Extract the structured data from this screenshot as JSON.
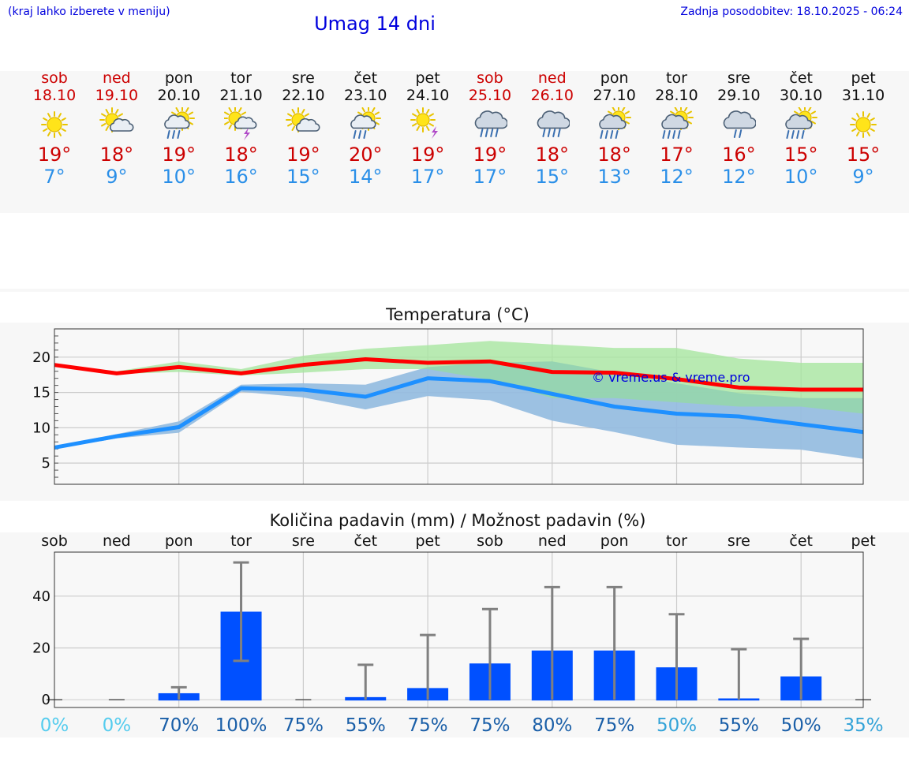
{
  "header": {
    "hint": "(kraj lahko izberete v meniju)",
    "title": "Umag 14 dni",
    "updated": "Zadnja posodobitev: 18.10.2025 - 06:24"
  },
  "days": [
    {
      "name": "sob",
      "date": "18.10",
      "weekend": true,
      "icon": "sun-icon",
      "max": "19°",
      "min": "7°"
    },
    {
      "name": "ned",
      "date": "19.10",
      "weekend": true,
      "icon": "sun-cloud-icon",
      "max": "18°",
      "min": "9°"
    },
    {
      "name": "pon",
      "date": "20.10",
      "weekend": false,
      "icon": "sun-cloud-rain-icon",
      "max": "19°",
      "min": "10°"
    },
    {
      "name": "tor",
      "date": "21.10",
      "weekend": false,
      "icon": "sun-cloud-thunder-icon",
      "max": "18°",
      "min": "16°"
    },
    {
      "name": "sre",
      "date": "22.10",
      "weekend": false,
      "icon": "sun-cloud-icon",
      "max": "19°",
      "min": "15°"
    },
    {
      "name": "čet",
      "date": "23.10",
      "weekend": false,
      "icon": "sun-cloud-rain-icon",
      "max": "20°",
      "min": "14°"
    },
    {
      "name": "pet",
      "date": "24.10",
      "weekend": false,
      "icon": "sun-thunder-icon",
      "max": "19°",
      "min": "17°"
    },
    {
      "name": "sob",
      "date": "25.10",
      "weekend": true,
      "icon": "cloud-heavy-rain-icon",
      "max": "19°",
      "min": "17°"
    },
    {
      "name": "ned",
      "date": "26.10",
      "weekend": true,
      "icon": "cloud-heavy-rain-icon",
      "max": "18°",
      "min": "15°"
    },
    {
      "name": "pon",
      "date": "27.10",
      "weekend": false,
      "icon": "sun-cloud-heavy-rain-icon",
      "max": "18°",
      "min": "13°"
    },
    {
      "name": "tor",
      "date": "28.10",
      "weekend": false,
      "icon": "sun-cloud-heavy-rain-icon",
      "max": "17°",
      "min": "12°"
    },
    {
      "name": "sre",
      "date": "29.10",
      "weekend": false,
      "icon": "cloud-rain-icon",
      "max": "16°",
      "min": "12°"
    },
    {
      "name": "čet",
      "date": "30.10",
      "weekend": false,
      "icon": "sun-cloud-heavy-rain-icon",
      "max": "15°",
      "min": "10°"
    },
    {
      "name": "pet",
      "date": "31.10",
      "weekend": false,
      "icon": "sun-icon",
      "max": "15°",
      "min": "9°"
    }
  ],
  "colors": {
    "max_line": "#ff0000",
    "min_line": "#1e90ff",
    "max_band": "#a8e6a0",
    "min_band": "#a9c1f0",
    "overlap_band": "#7fc4a8",
    "bar": "#0050ff",
    "error_bar": "#808080",
    "title_blue": "#0000dd",
    "weekend_red": "#cc0000"
  },
  "chart_data": [
    {
      "type": "line",
      "title": "Temperatura (°C)",
      "watermark": "© vreme.us & vreme.pro",
      "ylim": [
        2,
        24
      ],
      "yticks": [
        5,
        10,
        15,
        20
      ],
      "x": [
        0,
        1,
        2,
        3,
        4,
        5,
        6,
        7,
        8,
        9,
        10,
        11,
        12,
        13
      ],
      "series": [
        {
          "name": "max",
          "values": [
            18.9,
            17.7,
            18.6,
            17.7,
            18.9,
            19.7,
            19.2,
            19.4,
            17.9,
            17.8,
            16.9,
            15.7,
            15.4,
            15.4
          ]
        },
        {
          "name": "min",
          "values": [
            7.2,
            8.8,
            10.1,
            15.6,
            15.4,
            14.4,
            17.0,
            16.6,
            14.8,
            13.0,
            12.0,
            11.6,
            10.5,
            9.4
          ]
        }
      ],
      "bands": [
        {
          "name": "max-range",
          "low": [
            18.9,
            17.6,
            17.9,
            17.4,
            17.8,
            18.3,
            18.3,
            16.8,
            14.2,
            14.2,
            13.6,
            13.0,
            13.0,
            12.0
          ],
          "high": [
            19.0,
            18.0,
            19.4,
            18.3,
            20.2,
            21.2,
            21.7,
            22.3,
            21.8,
            21.3,
            21.3,
            19.8,
            19.2,
            19.2
          ]
        },
        {
          "name": "min-range",
          "low": [
            7.0,
            8.5,
            9.3,
            15.1,
            14.3,
            12.6,
            14.5,
            13.9,
            11.0,
            9.4,
            7.6,
            7.2,
            6.9,
            5.6
          ],
          "high": [
            7.4,
            9.1,
            10.9,
            16.1,
            16.3,
            16.1,
            18.6,
            19.2,
            19.4,
            17.8,
            16.3,
            14.9,
            14.2,
            14.2
          ]
        }
      ]
    },
    {
      "type": "bar",
      "title": "Količina padavin (mm) / Možnost padavin (%)",
      "categories": [
        "sob",
        "ned",
        "pon",
        "tor",
        "sre",
        "čet",
        "pet",
        "sob",
        "ned",
        "pon",
        "tor",
        "sre",
        "čet",
        "pet"
      ],
      "ylim": [
        -3,
        57
      ],
      "yticks": [
        0,
        20,
        40
      ],
      "values": [
        0,
        0,
        2.5,
        34,
        0,
        1,
        4.5,
        14,
        19,
        19,
        12.5,
        0.5,
        9,
        0
      ],
      "error_high": [
        0,
        0,
        4.8,
        53,
        0,
        13.5,
        25,
        35,
        43.5,
        43.5,
        33,
        19.5,
        23.5,
        0
      ],
      "error_low": [
        0,
        0,
        0,
        15,
        0,
        0,
        0,
        0,
        0,
        0,
        0,
        0,
        0,
        0
      ],
      "chance": [
        "0%",
        "0%",
        "70%",
        "100%",
        "75%",
        "55%",
        "75%",
        "75%",
        "80%",
        "75%",
        "50%",
        "55%",
        "50%",
        "35%"
      ],
      "chance_colors": [
        "#55ccee",
        "#55ccee",
        "#1a5fa8",
        "#1a5fa8",
        "#1a5fa8",
        "#1a5fa8",
        "#1a5fa8",
        "#1a5fa8",
        "#1a5fa8",
        "#1a5fa8",
        "#33a3d8",
        "#1a5fa8",
        "#1a5fa8",
        "#33a3d8"
      ]
    }
  ]
}
